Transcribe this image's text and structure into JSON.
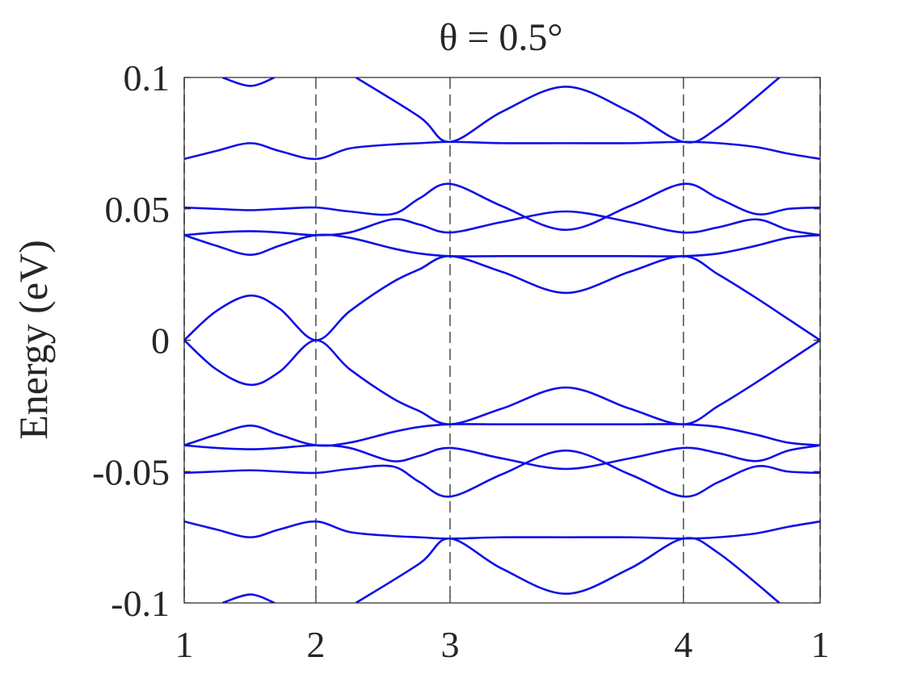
{
  "chart_data": {
    "type": "line",
    "title": "θ = 0.5°",
    "ylabel": "Energy (eV)",
    "xlim": [
      0,
      1
    ],
    "ylim": [
      -0.1,
      0.1
    ],
    "xticks": [
      {
        "value": 0,
        "label": "1"
      },
      {
        "value": 0.207,
        "label": "2"
      },
      {
        "value": 0.418,
        "label": "3"
      },
      {
        "value": 0.785,
        "label": "4"
      },
      {
        "value": 1,
        "label": "1"
      }
    ],
    "yticks": [
      -0.1,
      -0.05,
      0,
      0.05,
      0.1
    ],
    "grid": true,
    "x": [
      0,
      0.05,
      0.104,
      0.15,
      0.207,
      0.26,
      0.327,
      0.37,
      0.418,
      0.5,
      0.6,
      0.7,
      0.785,
      0.84,
      0.9,
      0.95,
      1
    ],
    "series": [
      {
        "color": "#0f0fe6",
        "values": [
          0,
          0.011,
          0.017,
          0.012,
          0,
          0.011,
          0.022,
          0.027,
          0.032,
          0.026,
          0.018,
          0.026,
          0.032,
          0.025,
          0.016,
          0.008,
          0
        ]
      },
      {
        "color": "#0f0fe6",
        "values": [
          0.04,
          0.036,
          0.0325,
          0.036,
          0.04,
          0.039,
          0.035,
          0.033,
          0.032,
          0.032,
          0.032,
          0.032,
          0.032,
          0.033,
          0.036,
          0.039,
          0.04
        ]
      },
      {
        "color": "#0f0fe6",
        "values": [
          0.04,
          0.041,
          0.0415,
          0.041,
          0.04,
          0.041,
          0.046,
          0.044,
          0.041,
          0.045,
          0.049,
          0.045,
          0.041,
          0.043,
          0.046,
          0.042,
          0.04
        ]
      },
      {
        "color": "#0f0fe6",
        "values": [
          0.0505,
          0.05,
          0.0495,
          0.05,
          0.0505,
          0.049,
          0.048,
          0.054,
          0.0595,
          0.051,
          0.042,
          0.051,
          0.0595,
          0.054,
          0.048,
          0.05,
          0.0505
        ]
      },
      {
        "color": "#0f0fe6",
        "values": [
          0.069,
          0.072,
          0.075,
          0.072,
          0.069,
          0.073,
          0.0745,
          0.075,
          0.0755,
          0.075,
          0.075,
          0.075,
          0.0755,
          0.075,
          0.0735,
          0.071,
          0.069
        ]
      },
      {
        "color": "#0f0fe6",
        "x": [
          0.06,
          0.104,
          0.142
        ],
        "values": [
          0.1,
          0.0968,
          0.1
        ]
      },
      {
        "color": "#0f0fe6",
        "x": [
          0.27,
          0.37,
          0.418,
          0.5,
          0.6,
          0.7,
          0.785,
          0.84,
          0.936
        ],
        "values": [
          0.1,
          0.085,
          0.0755,
          0.087,
          0.0965,
          0.087,
          0.0755,
          0.081,
          0.1
        ]
      },
      {
        "color": "#0f0fe6",
        "values": [
          0,
          -0.011,
          -0.017,
          -0.012,
          0,
          -0.011,
          -0.022,
          -0.027,
          -0.032,
          -0.026,
          -0.018,
          -0.026,
          -0.032,
          -0.025,
          -0.016,
          -0.008,
          0
        ]
      },
      {
        "color": "#0f0fe6",
        "values": [
          -0.04,
          -0.036,
          -0.0325,
          -0.036,
          -0.04,
          -0.039,
          -0.035,
          -0.033,
          -0.032,
          -0.032,
          -0.032,
          -0.032,
          -0.032,
          -0.033,
          -0.036,
          -0.039,
          -0.04
        ]
      },
      {
        "color": "#0f0fe6",
        "values": [
          -0.04,
          -0.041,
          -0.0415,
          -0.041,
          -0.04,
          -0.041,
          -0.046,
          -0.044,
          -0.041,
          -0.045,
          -0.049,
          -0.045,
          -0.041,
          -0.043,
          -0.046,
          -0.042,
          -0.04
        ]
      },
      {
        "color": "#0f0fe6",
        "values": [
          -0.0505,
          -0.05,
          -0.0495,
          -0.05,
          -0.0505,
          -0.049,
          -0.048,
          -0.054,
          -0.0595,
          -0.051,
          -0.042,
          -0.051,
          -0.0595,
          -0.054,
          -0.048,
          -0.05,
          -0.0505
        ]
      },
      {
        "color": "#0f0fe6",
        "values": [
          -0.069,
          -0.072,
          -0.075,
          -0.072,
          -0.069,
          -0.073,
          -0.0745,
          -0.075,
          -0.0755,
          -0.075,
          -0.075,
          -0.075,
          -0.0755,
          -0.075,
          -0.0735,
          -0.071,
          -0.069
        ]
      },
      {
        "color": "#0f0fe6",
        "x": [
          0.06,
          0.104,
          0.142
        ],
        "values": [
          -0.1,
          -0.0968,
          -0.1
        ]
      },
      {
        "color": "#0f0fe6",
        "x": [
          0.27,
          0.37,
          0.418,
          0.5,
          0.6,
          0.7,
          0.785,
          0.84,
          0.936
        ],
        "values": [
          -0.1,
          -0.085,
          -0.0755,
          -0.087,
          -0.0965,
          -0.087,
          -0.0755,
          -0.081,
          -0.1
        ]
      }
    ]
  }
}
